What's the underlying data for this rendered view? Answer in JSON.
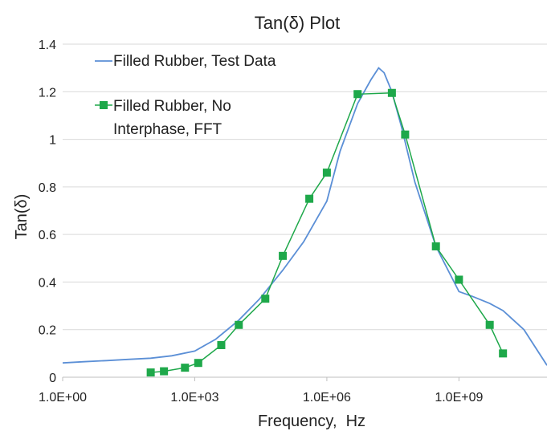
{
  "chart_data": {
    "type": "line",
    "title": "Tan(δ) Plot",
    "xlabel": "Frequency,  Hz",
    "ylabel": "Tan(δ)",
    "x_scale": "log",
    "xlim": [
      1,
      100000000000.0
    ],
    "ylim": [
      0,
      1.4
    ],
    "x_ticks": [
      1,
      1000,
      1000000,
      1000000000
    ],
    "x_tick_labels": [
      "1.0E+00",
      "1.0E+03",
      "1.0E+06",
      "1.0E+09"
    ],
    "y_ticks": [
      0,
      0.2,
      0.4,
      0.6,
      0.8,
      1,
      1.2,
      1.4
    ],
    "y_tick_labels": [
      "0",
      "0.2",
      "0.4",
      "0.6",
      "0.8",
      "1",
      "1.2",
      "1.4"
    ],
    "grid": "horizontal",
    "legend_position": "top-left",
    "series": [
      {
        "name": "Filled Rubber, Test Data",
        "color": "#5b8fd6",
        "marker": "none",
        "x": [
          1,
          3,
          10,
          30,
          100,
          300,
          1000,
          3000,
          10000,
          30000,
          100000,
          300000,
          1000000,
          2000000,
          5000000,
          10000000,
          15000000,
          20000000,
          30000000,
          50000000,
          100000000,
          300000000,
          1000000000,
          2000000000,
          5000000000,
          10000000000,
          30000000000,
          100000000000
        ],
        "y": [
          0.06,
          0.065,
          0.07,
          0.075,
          0.08,
          0.09,
          0.11,
          0.16,
          0.24,
          0.33,
          0.45,
          0.57,
          0.74,
          0.95,
          1.15,
          1.25,
          1.3,
          1.28,
          1.2,
          1.05,
          0.82,
          0.55,
          0.36,
          0.34,
          0.31,
          0.28,
          0.2,
          0.05
        ]
      },
      {
        "name": "Filled Rubber, No Interphase, FFT",
        "color": "#1ea84a",
        "marker": "square",
        "x": [
          100,
          200,
          600,
          1200,
          4000,
          10000,
          40000,
          100000,
          400000,
          1000000,
          5000000,
          30000000,
          60000000,
          300000000,
          1000000000,
          5000000000,
          10000000000
        ],
        "y": [
          0.02,
          0.025,
          0.04,
          0.06,
          0.135,
          0.22,
          0.33,
          0.51,
          0.75,
          0.86,
          1.19,
          1.195,
          1.02,
          0.55,
          0.41,
          0.22,
          0.1
        ]
      }
    ]
  }
}
